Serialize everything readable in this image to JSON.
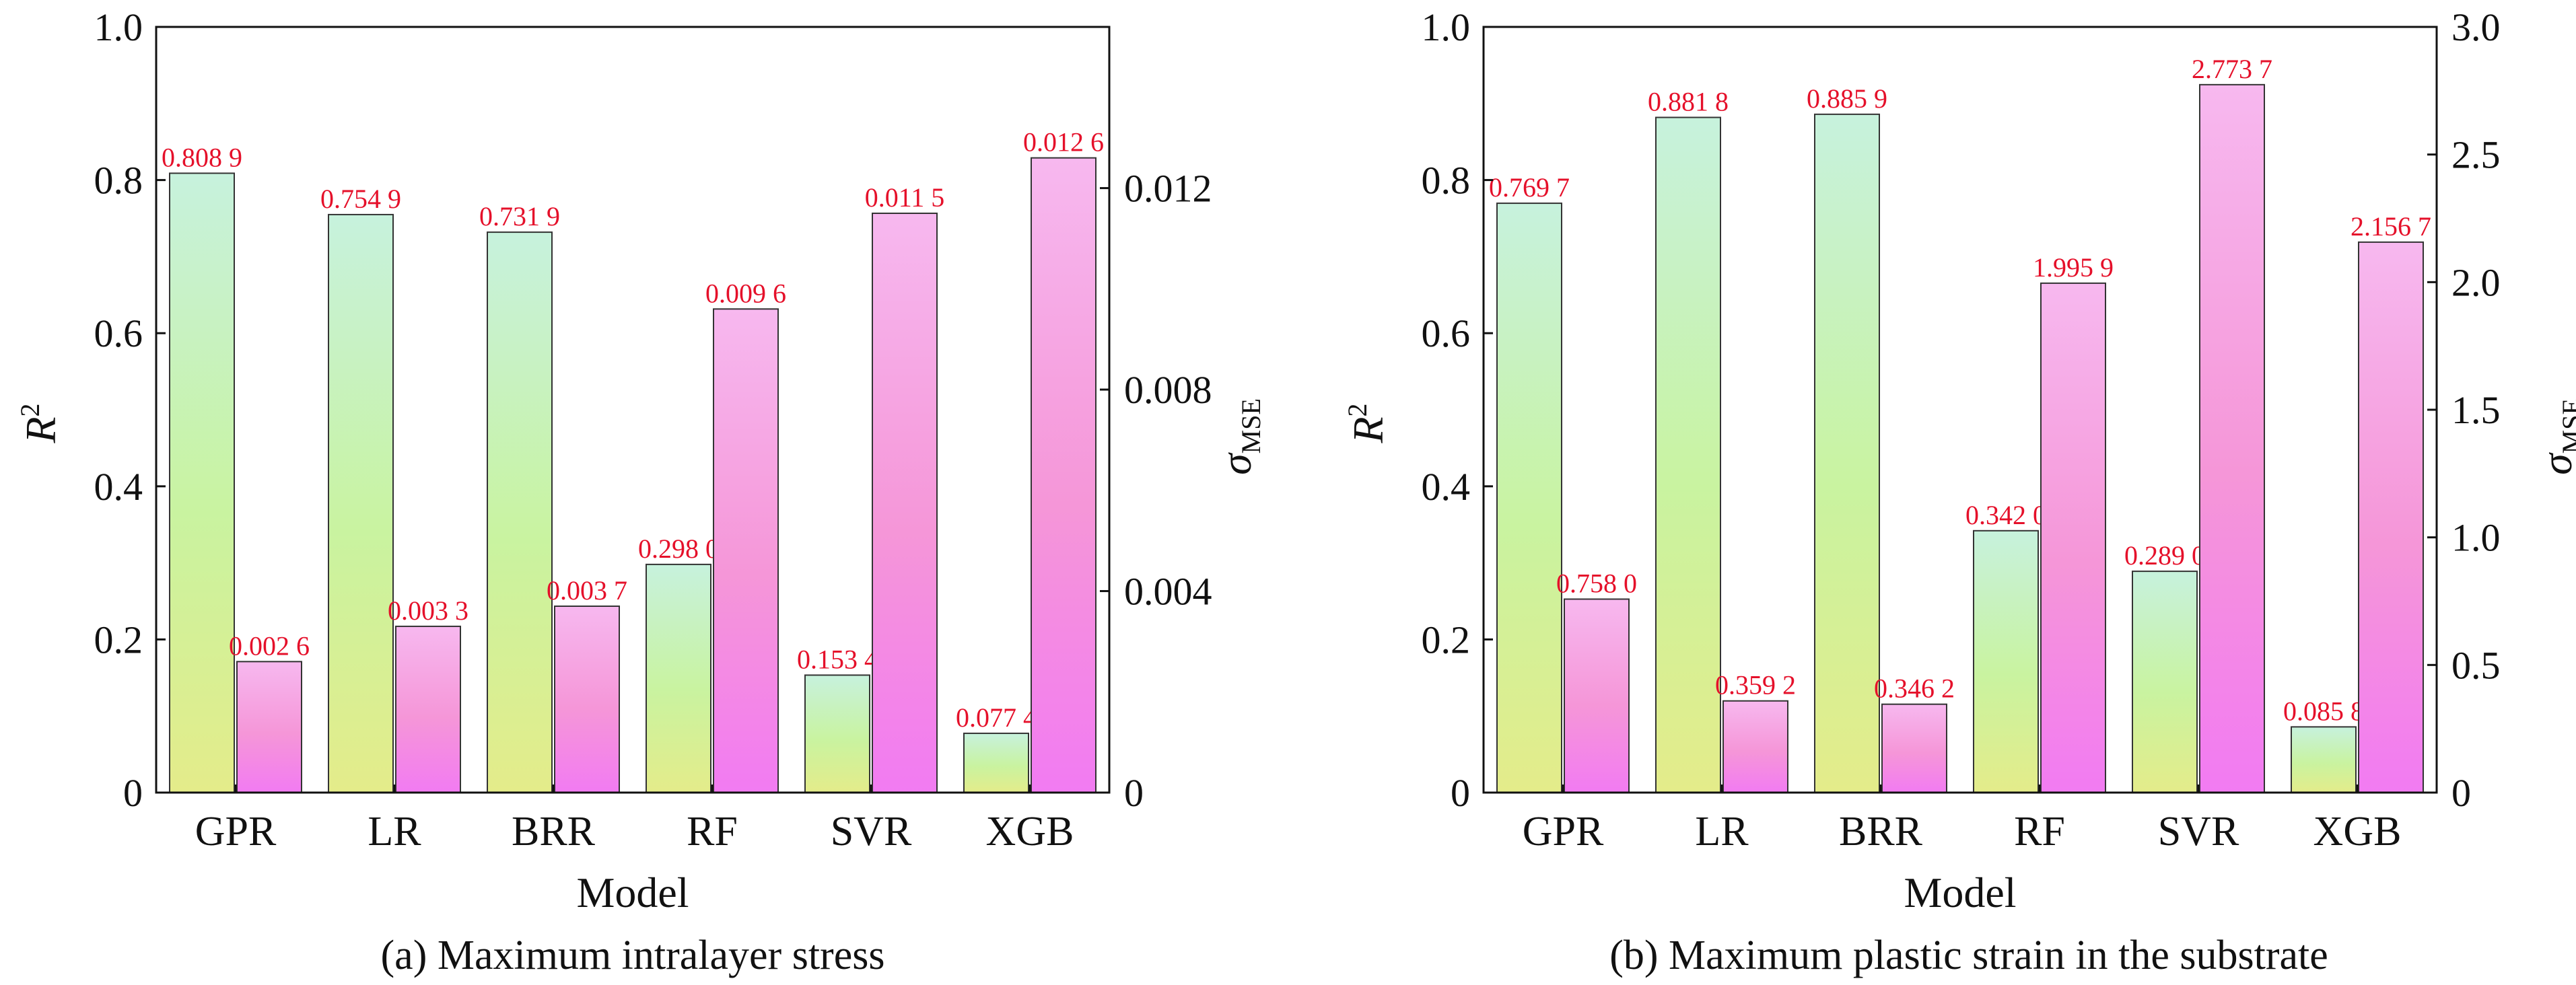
{
  "chart_data": [
    {
      "type": "bar",
      "caption": "(a) Maximum intralayer stress",
      "xlabel": "Model",
      "ylabel": "R",
      "ylabel_sup": "2",
      "y2label": "σ",
      "y2label_sub": "MSE",
      "categories": [
        "GPR",
        "LR",
        "BRR",
        "RF",
        "SVR",
        "XGB"
      ],
      "ylim": [
        0,
        1.0
      ],
      "y2lim": [
        0,
        0.0152
      ],
      "yticks": [
        "0",
        "0.2",
        "0.4",
        "0.6",
        "0.8",
        "1.0"
      ],
      "y2ticks": [
        "0",
        "0.004",
        "0.008",
        "0.012"
      ],
      "y2tick_values": [
        0,
        0.004,
        0.008,
        0.012
      ],
      "series": [
        {
          "axis": "left",
          "values": [
            0.8089,
            0.7549,
            0.7319,
            0.298,
            0.1534,
            0.0774
          ],
          "labels": [
            "0.808 9",
            "0.754 9",
            "0.731 9",
            "0.298 0",
            "0.153 4",
            "0.077 4"
          ],
          "colors": [
            "#e4ec8a",
            "#c9f3a0",
            "#c7f2dd"
          ]
        },
        {
          "axis": "right",
          "values": [
            0.0026,
            0.0033,
            0.0037,
            0.0096,
            0.0115,
            0.0126
          ],
          "labels": [
            "0.002 6",
            "0.003 3",
            "0.003 7",
            "0.009 6",
            "0.011 5",
            "0.012 6"
          ],
          "colors": [
            "#f27bf2",
            "#f596d8",
            "#f7b8ef"
          ]
        }
      ]
    },
    {
      "type": "bar",
      "caption": "(b) Maximum plastic strain in the substrate",
      "xlabel": "Model",
      "ylabel": "R",
      "ylabel_sup": "2",
      "y2label": "σ",
      "y2label_sub": "MSE",
      "categories": [
        "GPR",
        "LR",
        "BRR",
        "RF",
        "SVR",
        "XGB"
      ],
      "ylim": [
        0,
        1.0
      ],
      "y2lim": [
        0,
        3.0
      ],
      "yticks": [
        "0",
        "0.2",
        "0.4",
        "0.6",
        "0.8",
        "1.0"
      ],
      "y2ticks": [
        "0",
        "0.5",
        "1.0",
        "1.5",
        "2.0",
        "2.5",
        "3.0"
      ],
      "y2tick_values": [
        0,
        0.5,
        1.0,
        1.5,
        2.0,
        2.5,
        3.0
      ],
      "series": [
        {
          "axis": "left",
          "values": [
            0.7697,
            0.8818,
            0.8859,
            0.342,
            0.289,
            0.0858
          ],
          "labels": [
            "0.769 7",
            "0.881 8",
            "0.885 9",
            "0.342 0",
            "0.289 0",
            "0.085 8"
          ],
          "colors": [
            "#e4ec8a",
            "#c9f3a0",
            "#c7f2dd"
          ]
        },
        {
          "axis": "right",
          "values": [
            0.758,
            0.3592,
            0.3462,
            1.9959,
            2.7737,
            2.1567
          ],
          "labels": [
            "0.758 0",
            "0.359 2",
            "0.346 2",
            "1.995 9",
            "2.773 7",
            "2.156 7"
          ],
          "colors": [
            "#f27bf2",
            "#f596d8",
            "#f7b8ef"
          ]
        }
      ]
    }
  ]
}
